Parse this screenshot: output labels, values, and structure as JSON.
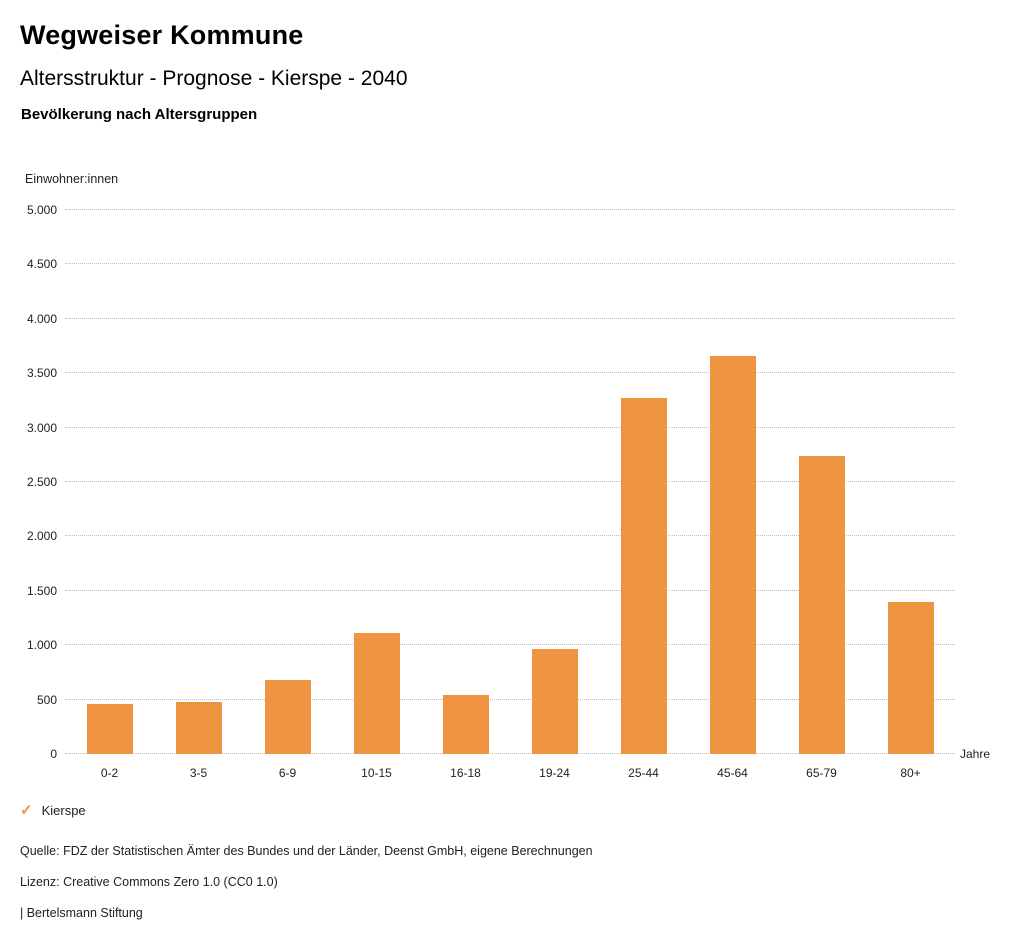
{
  "header": {
    "title": "Wegweiser Kommune",
    "subtitle": "Altersstruktur - Prognose - Kierspe - 2040",
    "chart_heading": "Bevölkerung nach Altersgruppen"
  },
  "chart_data": {
    "type": "bar",
    "title": "Bevölkerung nach Altersgruppen",
    "unit_label": "Einwohner:innen",
    "categories": [
      "0-2",
      "3-5",
      "6-9",
      "10-15",
      "16-18",
      "19-24",
      "25-44",
      "45-64",
      "65-79",
      "80+"
    ],
    "values": [
      460,
      475,
      680,
      1110,
      545,
      965,
      3270,
      3660,
      2740,
      1395
    ],
    "series_name": "Kierspe",
    "bar_color": "#ef9541",
    "xlabel": "Jahre",
    "ylabel": "Einwohner:innen",
    "ylim": [
      0,
      5000
    ],
    "ytick_step": 500,
    "ytick_labels": [
      "0",
      "500",
      "1.000",
      "1.500",
      "2.000",
      "2.500",
      "3.000",
      "3.500",
      "4.000",
      "4.500",
      "5.000"
    ],
    "grid": "horizontal-dotted",
    "legend_position": "bottom-left"
  },
  "legend": {
    "check_glyph": "✓",
    "label": "Kierspe",
    "color": "#ef9541"
  },
  "footer": {
    "source": "Quelle: FDZ der Statistischen Ämter des Bundes und der Länder, Deenst GmbH, eigene Berechnungen",
    "license": "Lizenz: Creative Commons Zero 1.0 (CC0 1.0)",
    "attribution": "| Bertelsmann Stiftung"
  }
}
